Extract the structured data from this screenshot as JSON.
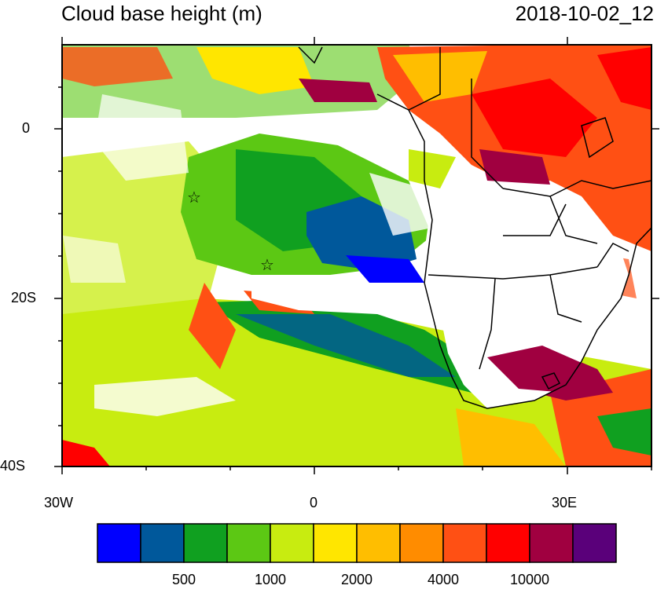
{
  "header": {
    "title": "Cloud base height (m)",
    "date": "2018-10-02_12"
  },
  "axes": {
    "lat_labels": [
      "0",
      "20S",
      "40S"
    ],
    "lon_labels": [
      "30W",
      "0",
      "30E"
    ]
  },
  "legend": {
    "colors": [
      "#0000ff",
      "#00589b",
      "#10a020",
      "#5cc814",
      "#c8ec10",
      "#ffe600",
      "#ffbe00",
      "#ff8c00",
      "#ff5014",
      "#ff0000",
      "#a00040",
      "#5a007a"
    ],
    "labels": [
      "500",
      "1000",
      "2000",
      "4000",
      "10000"
    ]
  },
  "markers": {
    "icon": "star-icon",
    "count": 2
  }
}
